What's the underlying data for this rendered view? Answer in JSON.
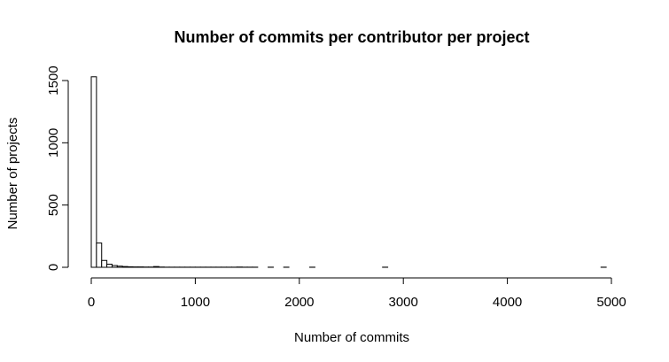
{
  "chart_data": {
    "type": "bar",
    "title": "Number of commits per contributor per project",
    "xlabel": "Number of commits",
    "ylabel": "Number of projects",
    "bin_width": 50,
    "bin_start": 0,
    "xlim": [
      0,
      5200
    ],
    "ylim": [
      0,
      1550
    ],
    "x_ticks": [
      0,
      1000,
      2000,
      3000,
      4000,
      5000
    ],
    "y_ticks": [
      0,
      500,
      1000,
      1500
    ],
    "counts": [
      1530,
      195,
      55,
      25,
      14,
      9,
      6,
      4,
      3,
      3,
      2,
      2,
      6,
      2,
      1,
      1,
      1,
      1,
      1,
      1,
      1,
      1,
      1,
      1,
      1,
      1,
      1,
      1,
      2,
      1,
      1,
      1,
      0,
      0,
      1,
      0,
      0,
      1,
      0,
      0,
      0,
      0,
      1,
      0,
      0,
      0,
      0,
      0,
      0,
      0,
      0,
      0,
      0,
      0,
      0,
      0,
      1,
      0,
      0,
      0,
      0,
      0,
      0,
      0,
      0,
      0,
      0,
      0,
      0,
      0,
      0,
      0,
      0,
      0,
      0,
      0,
      0,
      0,
      0,
      0,
      0,
      0,
      0,
      0,
      0,
      0,
      0,
      0,
      0,
      0,
      0,
      0,
      0,
      0,
      0,
      0,
      0,
      0,
      1,
      0,
      0,
      0,
      0,
      0
    ],
    "grid": false
  }
}
